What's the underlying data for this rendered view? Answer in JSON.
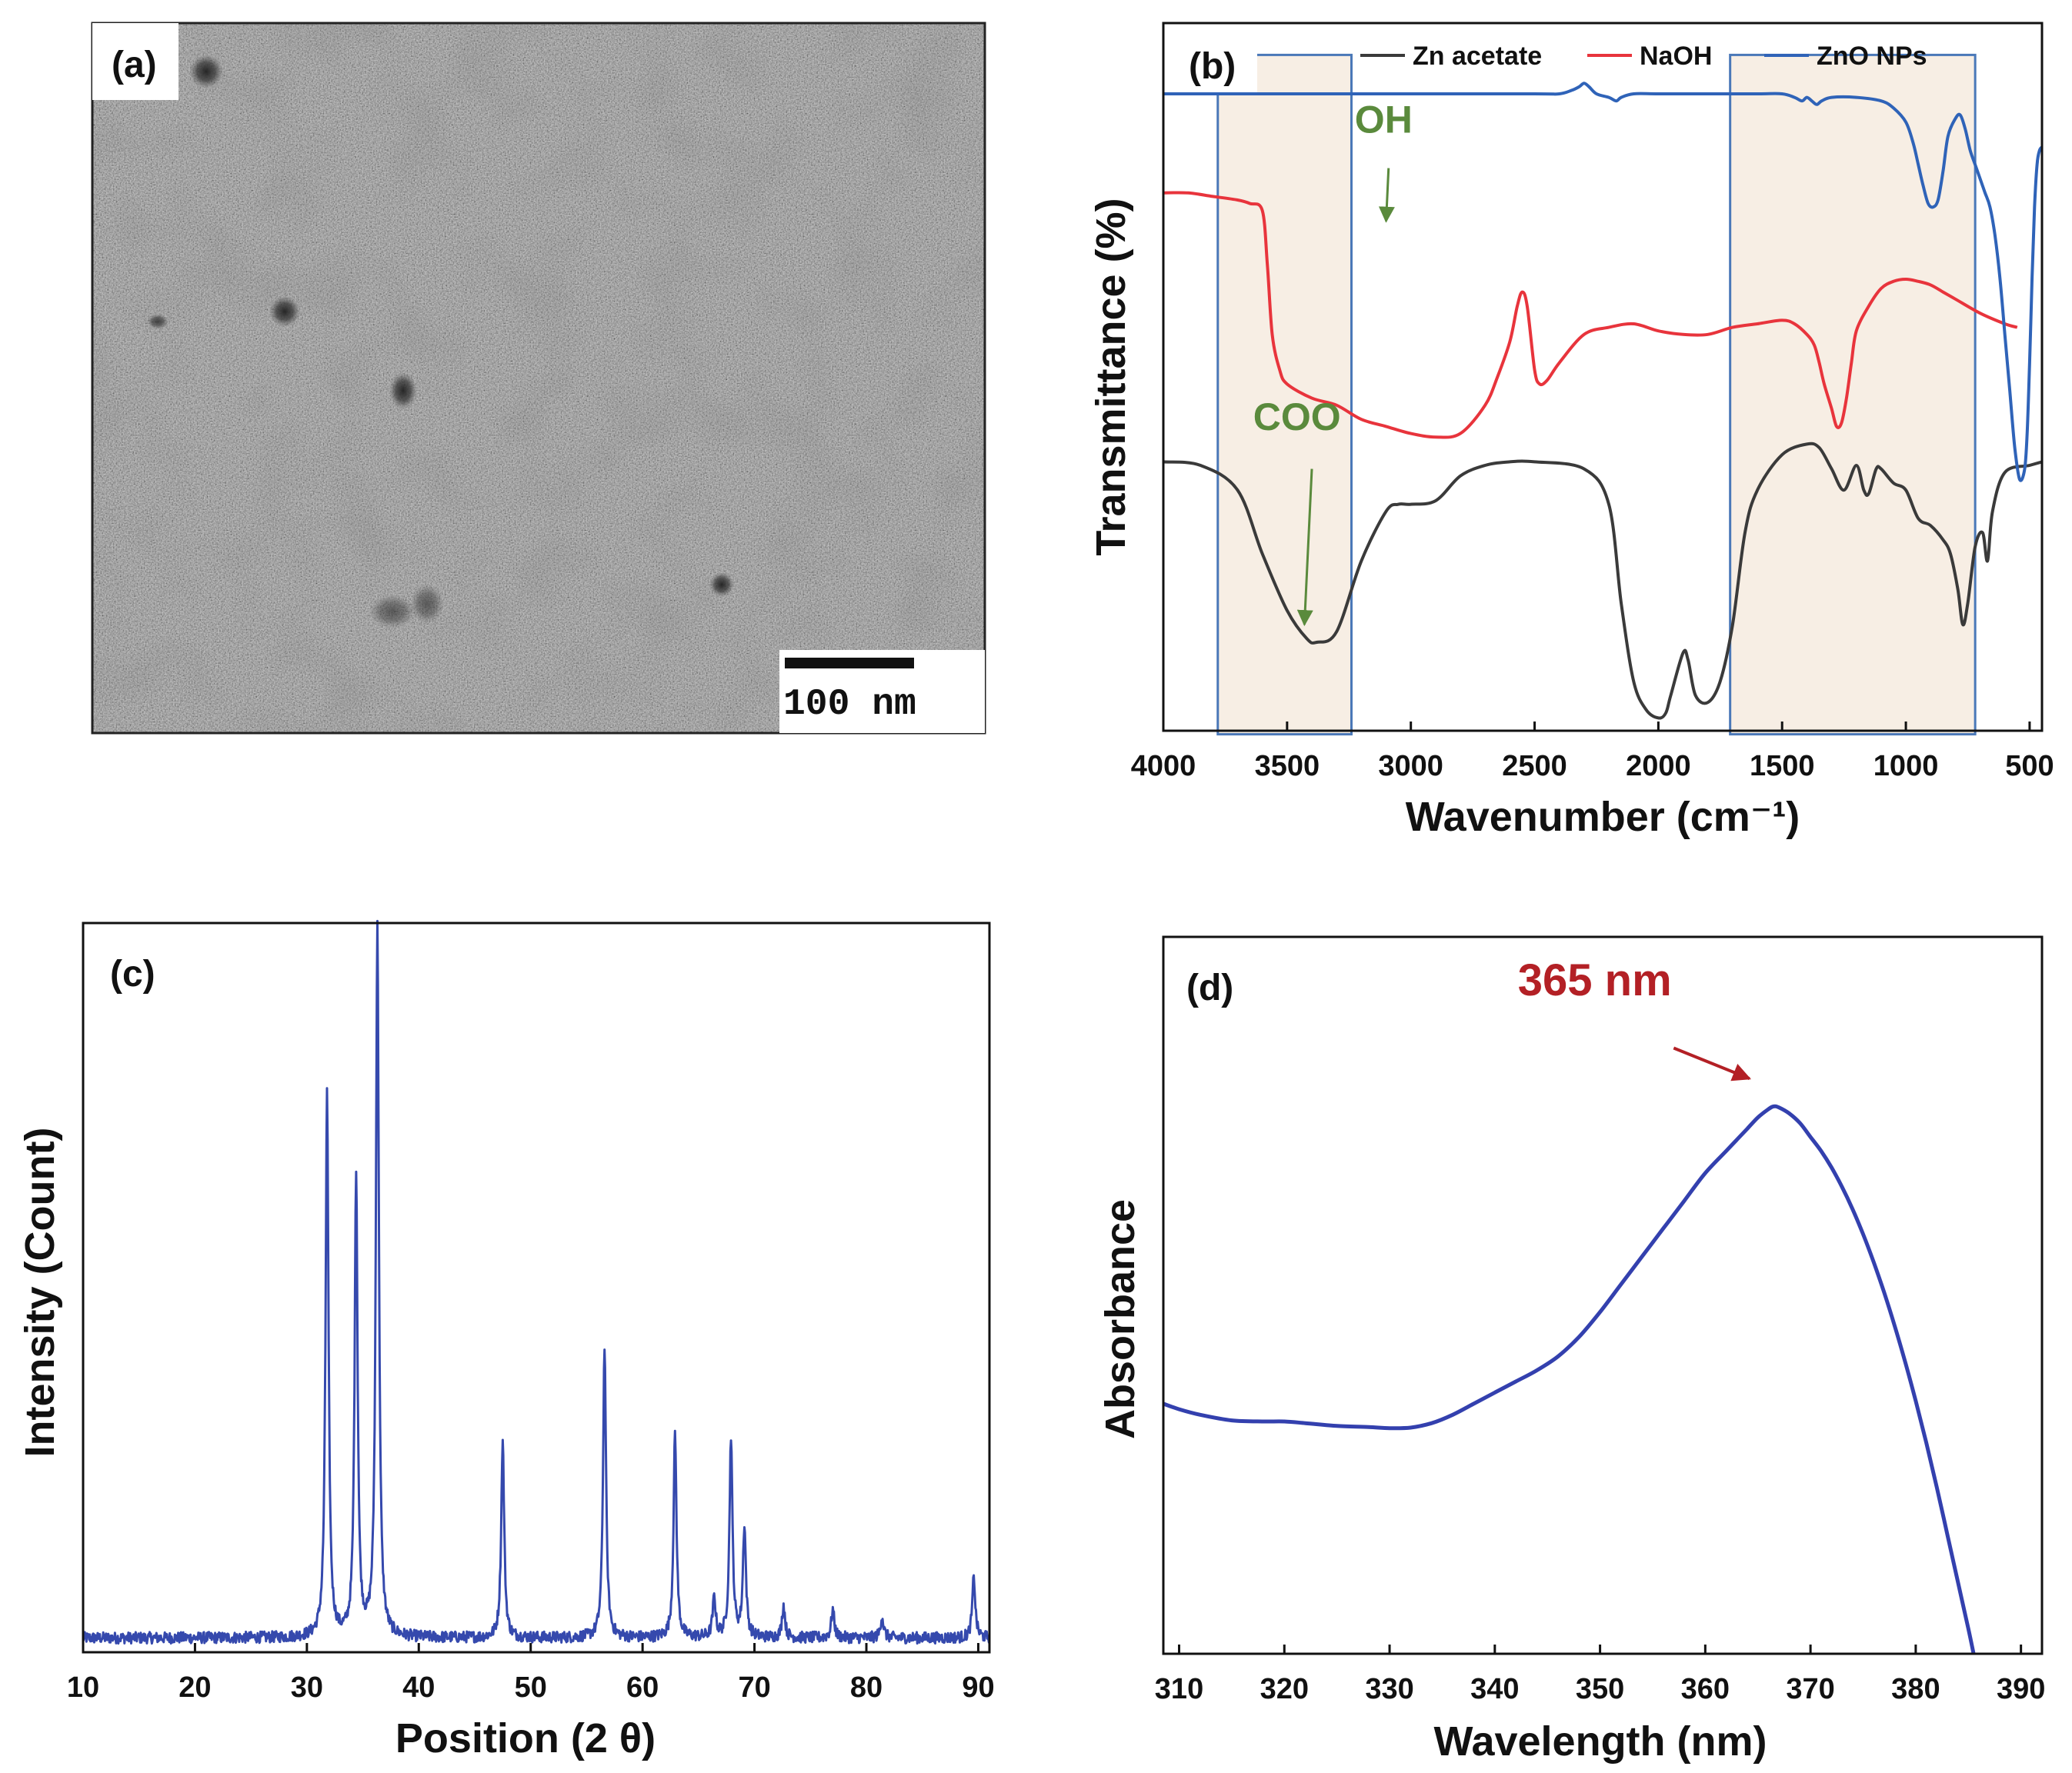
{
  "panels": {
    "a": {
      "label": "(a)",
      "scale_bar": "100 nm"
    },
    "b": {
      "label": "(b)"
    },
    "c": {
      "label": "(c)"
    },
    "d": {
      "label": "(d)"
    }
  },
  "colors": {
    "zn_acetate": "#3a3a3a",
    "naoh": "#e8343c",
    "zno": "#2f63b8",
    "xrd": "#3549ad",
    "uv": "#3340ae",
    "annotation_green": "#5a8a3c",
    "annotation_red": "#b32025",
    "highlight_fill": "#f7eee4",
    "highlight_stroke": "#4a78b8"
  },
  "chart_data": [
    {
      "id": "ftir",
      "panel": "(b)",
      "type": "line",
      "title": "",
      "xlabel": "Wavenumber (cm⁻¹)",
      "ylabel": "Transmittance (%)",
      "xlim": [
        4000,
        450
      ],
      "x_reversed": true,
      "ylim": [
        0,
        100
      ],
      "y_ticks_shown": false,
      "xticks": [
        "4000",
        "3500",
        "3000",
        "2500",
        "2000",
        "1500",
        "1000",
        "500"
      ],
      "xtick_values": [
        4000,
        3500,
        3000,
        2500,
        2000,
        1500,
        1000,
        500
      ],
      "legend": [
        "Zn acetate",
        "NaOH",
        "ZnO NPs"
      ],
      "legend_position": "top",
      "highlight_regions": [
        [
          3780,
          3240
        ],
        [
          1710,
          720
        ]
      ],
      "annotations": [
        {
          "text": "OH",
          "x": 3100,
          "y": 72
        },
        {
          "text": "COO",
          "x": 3430,
          "y": 15
        }
      ],
      "series": [
        {
          "name": "Zn acetate",
          "x": [
            4000,
            3850,
            3700,
            3600,
            3500,
            3420,
            3380,
            3300,
            3200,
            3100,
            3050,
            3000,
            2900,
            2800,
            2700,
            2600,
            2500,
            2300,
            2200,
            2150,
            2100,
            2050,
            2000,
            1970,
            1950,
            1900,
            1880,
            1850,
            1800,
            1750,
            1700,
            1650,
            1600,
            1500,
            1400,
            1350,
            1300,
            1250,
            1200,
            1170,
            1150,
            1120,
            1100,
            1050,
            1000,
            950,
            900,
            850,
            820,
            790,
            770,
            750,
            720,
            690,
            670,
            650,
            600,
            500,
            450
          ],
          "y": [
            38,
            37.5,
            34,
            25,
            17,
            13,
            12.5,
            14,
            24,
            31,
            32,
            32,
            32.5,
            36,
            37.5,
            38,
            38,
            37,
            32,
            18,
            7,
            3,
            1.8,
            2.5,
            5,
            11,
            10,
            5,
            4,
            7,
            15,
            28,
            34,
            39,
            40.5,
            40,
            37,
            34,
            37.5,
            34,
            33.5,
            37,
            37,
            35,
            34,
            30,
            29,
            27,
            25,
            20,
            15,
            18,
            26,
            28,
            24,
            31,
            36.5,
            37.5,
            38
          ]
        },
        {
          "name": "NaOH",
          "x": [
            4000,
            3900,
            3800,
            3700,
            3650,
            3600,
            3580,
            3560,
            3530,
            3500,
            3400,
            3300,
            3200,
            3100,
            3000,
            2900,
            2800,
            2700,
            2650,
            2600,
            2570,
            2550,
            2530,
            2500,
            2480,
            2450,
            2400,
            2300,
            2200,
            2100,
            2000,
            1900,
            1800,
            1700,
            1600,
            1500,
            1450,
            1400,
            1370,
            1350,
            1330,
            1300,
            1280,
            1260,
            1240,
            1220,
            1200,
            1150,
            1100,
            1050,
            1000,
            950,
            900,
            850,
            800,
            700,
            600,
            550
          ],
          "y": [
            76,
            76,
            75.5,
            75,
            74.5,
            73.5,
            66,
            56,
            51,
            49,
            47,
            46,
            44,
            43,
            42,
            41.5,
            42,
            46,
            50,
            55,
            60,
            62,
            60,
            51,
            49,
            49.5,
            52,
            56,
            57,
            57.5,
            56.5,
            56,
            56,
            57,
            57.5,
            58,
            57.5,
            56,
            54.5,
            52,
            49,
            45.5,
            43,
            43.5,
            47,
            52,
            56.5,
            60,
            62.5,
            63.5,
            63.8,
            63.5,
            63,
            62,
            61,
            59,
            57.5,
            57
          ]
        },
        {
          "name": "ZnO NPs",
          "x": [
            4000,
            3500,
            3000,
            2500,
            2400,
            2350,
            2320,
            2300,
            2280,
            2250,
            2200,
            2170,
            2150,
            2100,
            2000,
            1800,
            1600,
            1500,
            1450,
            1420,
            1400,
            1380,
            1360,
            1340,
            1300,
            1200,
            1100,
            1050,
            1000,
            970,
            950,
            930,
            910,
            890,
            870,
            850,
            830,
            800,
            780,
            760,
            740,
            720,
            700,
            680,
            660,
            640,
            620,
            600,
            580,
            560,
            540,
            520,
            510,
            500,
            490,
            480,
            470,
            460,
            450
          ],
          "y": [
            90,
            90,
            90,
            90,
            90,
            90.5,
            91,
            91.5,
            91,
            90,
            89.5,
            89,
            89.5,
            90,
            90,
            90,
            90,
            90,
            89.5,
            89,
            89.5,
            89,
            88.5,
            89,
            89.5,
            89.5,
            89,
            88,
            86,
            83,
            80,
            77,
            74.5,
            74,
            75,
            79,
            84,
            86.5,
            87,
            85,
            82,
            80,
            78,
            76,
            74,
            70,
            64,
            56,
            48,
            40,
            35.5,
            37,
            42,
            52,
            64,
            74,
            80,
            82,
            82.5
          ]
        }
      ]
    },
    {
      "id": "xrd",
      "panel": "(c)",
      "type": "line",
      "title": "",
      "xlabel": "Position (2 θ)",
      "ylabel": "Intensity (Count)",
      "xlim": [
        10,
        91
      ],
      "ylim": [
        0,
        100
      ],
      "y_ticks_shown": false,
      "xticks": [
        "10",
        "20",
        "30",
        "40",
        "50",
        "60",
        "70",
        "80",
        "90"
      ],
      "xtick_values": [
        10,
        20,
        30,
        40,
        50,
        60,
        70,
        80,
        90
      ],
      "baseline": 2,
      "peaks": [
        {
          "pos": 31.8,
          "height": 76
        },
        {
          "pos": 34.4,
          "height": 65
        },
        {
          "pos": 36.3,
          "height": 100
        },
        {
          "pos": 47.5,
          "height": 27.5
        },
        {
          "pos": 56.6,
          "height": 41
        },
        {
          "pos": 62.9,
          "height": 28.5
        },
        {
          "pos": 66.4,
          "height": 5.5
        },
        {
          "pos": 67.9,
          "height": 28
        },
        {
          "pos": 69.1,
          "height": 15.5
        },
        {
          "pos": 72.6,
          "height": 4.5
        },
        {
          "pos": 77.0,
          "height": 4
        },
        {
          "pos": 81.4,
          "height": 3
        },
        {
          "pos": 89.6,
          "height": 8.5
        }
      ]
    },
    {
      "id": "uv",
      "panel": "(d)",
      "type": "line",
      "title": "",
      "xlabel": "Wavelength (nm)",
      "ylabel": "Absorbance",
      "xlim": [
        308.5,
        392
      ],
      "ylim": [
        0,
        100
      ],
      "y_ticks_shown": false,
      "xticks": [
        "310",
        "320",
        "330",
        "340",
        "350",
        "360",
        "370",
        "380",
        "390"
      ],
      "xtick_values": [
        310,
        320,
        330,
        340,
        350,
        360,
        370,
        380,
        390
      ],
      "annotations": [
        {
          "text": "365 nm",
          "x": 366.5,
          "y": 99
        }
      ],
      "series": [
        {
          "name": "ZnO NPs",
          "x": [
            308.5,
            310,
            312,
            315,
            318,
            320,
            322,
            325,
            328,
            330,
            332,
            334,
            336,
            338,
            340,
            342,
            344,
            346,
            348,
            350,
            352,
            354,
            356,
            358,
            360,
            362,
            363,
            364,
            365,
            366,
            366.5,
            367,
            368,
            369,
            370,
            371,
            372,
            373,
            374,
            375,
            376,
            377,
            378,
            379,
            380,
            381,
            382,
            383,
            384,
            385,
            385.5
          ],
          "y": [
            45,
            44,
            43,
            42,
            41.8,
            41.8,
            41.5,
            41,
            40.8,
            40.6,
            40.7,
            41.5,
            43,
            45,
            47,
            49,
            51,
            53.5,
            57,
            61.5,
            66.5,
            71.5,
            76.5,
            81.5,
            86.5,
            90.5,
            92.5,
            94.5,
            96.5,
            98,
            98.5,
            98.3,
            97.2,
            95.5,
            93,
            90.5,
            87.5,
            84,
            80,
            75.5,
            70.5,
            65,
            59,
            52.5,
            45.5,
            38,
            30,
            21.5,
            13,
            4.5,
            0
          ]
        }
      ]
    }
  ]
}
